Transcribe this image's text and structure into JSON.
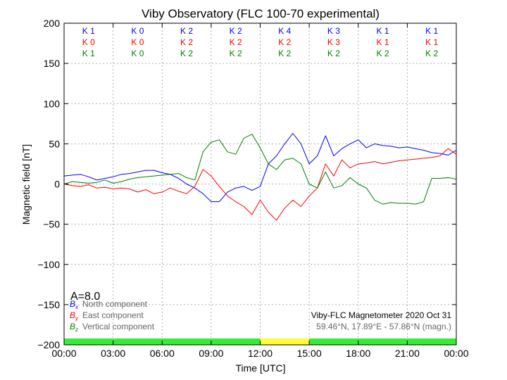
{
  "chart_data": {
    "type": "line",
    "title": "Viby Observatory (FLC 100-70 experimental)",
    "xlabel": "Time [UTC]",
    "ylabel": "Magnetic field [nT]",
    "ylim": [
      -200,
      200
    ],
    "xlim_hours": [
      0,
      24
    ],
    "x_tick_labels": [
      "00:00",
      "03:00",
      "06:00",
      "09:00",
      "12:00",
      "15:00",
      "18:00",
      "21:00",
      "00:00"
    ],
    "y_tick_labels": [
      "200",
      "150",
      "100",
      "50",
      "0",
      "−50",
      "−100",
      "−150",
      "−200"
    ],
    "y_ticks": [
      200,
      150,
      100,
      50,
      0,
      -50,
      -100,
      -150,
      -200
    ],
    "grid": true,
    "legend_position": "bottom-left",
    "k_indices": {
      "north": [
        "K 1",
        "K 0",
        "K 2",
        "K 2",
        "K 4",
        "K 3",
        "K 1",
        "K 1"
      ],
      "east": [
        "K 0",
        "K 0",
        "K 2",
        "K 2",
        "K 2",
        "K 3",
        "K 1",
        "K 1"
      ],
      "vertical": [
        "K 1",
        "K 0",
        "K 2",
        "K 2",
        "K 2",
        "K 2",
        "K 2",
        "K 2"
      ]
    },
    "a_index": "A=8.0",
    "info_line1": "Viby-FLC Magnetometer 2020 Oct 31",
    "info_line2": "59.46°N, 17.89°E - 57.86°N (magn.)",
    "activity_bar": [
      {
        "from": 0,
        "to": 12,
        "color": "#33ee33"
      },
      {
        "from": 12,
        "to": 15,
        "color": "#ffff33"
      },
      {
        "from": 15,
        "to": 24,
        "color": "#33ee33"
      }
    ],
    "series": [
      {
        "symbol": "B",
        "subscript": "x",
        "name": "North component",
        "color": "#0000ff",
        "x": [
          0,
          0.5,
          1,
          1.5,
          2,
          2.5,
          3,
          3.5,
          4,
          4.5,
          5,
          5.5,
          6,
          6.5,
          7,
          7.5,
          8,
          8.5,
          9,
          9.5,
          10,
          10.5,
          11,
          11.5,
          12,
          12.5,
          13,
          13.5,
          14,
          14.5,
          15,
          15.5,
          16,
          16.5,
          17,
          17.5,
          18,
          18.5,
          19,
          19.5,
          20,
          20.5,
          21,
          21.5,
          22,
          22.5,
          23,
          23.5,
          24
        ],
        "y": [
          10,
          11,
          12,
          9,
          5,
          7,
          9,
          12,
          13,
          15,
          17,
          17,
          14,
          12,
          7,
          0,
          -5,
          -12,
          -22,
          -22,
          -10,
          -5,
          -3,
          -8,
          -3,
          25,
          35,
          50,
          63,
          50,
          25,
          35,
          60,
          35,
          44,
          50,
          55,
          45,
          50,
          48,
          47,
          45,
          46,
          44,
          42,
          39,
          38,
          36,
          42
        ]
      },
      {
        "symbol": "B",
        "subscript": "y",
        "name": "East component",
        "color": "#ff0000",
        "x": [
          0,
          0.5,
          1,
          1.5,
          2,
          2.5,
          3,
          3.5,
          4,
          4.5,
          5,
          5.5,
          6,
          6.5,
          7,
          7.5,
          8,
          8.5,
          9,
          9.5,
          10,
          10.5,
          11,
          11.5,
          12,
          12.5,
          13,
          13.5,
          14,
          14.5,
          15,
          15.5,
          16,
          16.5,
          17,
          17.5,
          18,
          18.5,
          19,
          19.5,
          20,
          20.5,
          21,
          21.5,
          22,
          22.5,
          23,
          23.5,
          24
        ],
        "y": [
          0,
          -2,
          -3,
          -1,
          -5,
          -4,
          -6,
          -5,
          -6,
          -10,
          -7,
          -12,
          -10,
          -5,
          -9,
          -12,
          -3,
          18,
          10,
          -3,
          -15,
          -22,
          -28,
          -38,
          -20,
          -35,
          -45,
          -30,
          -20,
          -28,
          -15,
          -5,
          25,
          10,
          30,
          20,
          25,
          26,
          28,
          25,
          27,
          29,
          30,
          31,
          32,
          33,
          35,
          44,
          37
        ]
      },
      {
        "symbol": "B",
        "subscript": "z",
        "name": "Vertical component",
        "color": "#008000",
        "x": [
          0,
          0.5,
          1,
          1.5,
          2,
          2.5,
          3,
          3.5,
          4,
          4.5,
          5,
          5.5,
          6,
          6.5,
          7,
          7.5,
          8,
          8.5,
          9,
          9.5,
          10,
          10.5,
          11,
          11.5,
          12,
          12.5,
          13,
          13.5,
          14,
          14.5,
          15,
          15.5,
          16,
          16.5,
          17,
          17.5,
          18,
          18.5,
          19,
          19.5,
          20,
          20.5,
          21,
          21.5,
          22,
          22.5,
          23,
          23.5,
          24
        ],
        "y": [
          0,
          3,
          2,
          1,
          2,
          5,
          1,
          3,
          6,
          8,
          9,
          10,
          11,
          12,
          13,
          8,
          5,
          40,
          52,
          55,
          40,
          37,
          57,
          62,
          45,
          25,
          18,
          30,
          32,
          25,
          0,
          -5,
          15,
          -5,
          -2,
          8,
          0,
          -5,
          -20,
          -25,
          -23,
          -24,
          -24,
          -25,
          -22,
          7,
          7,
          8,
          6
        ]
      }
    ]
  }
}
